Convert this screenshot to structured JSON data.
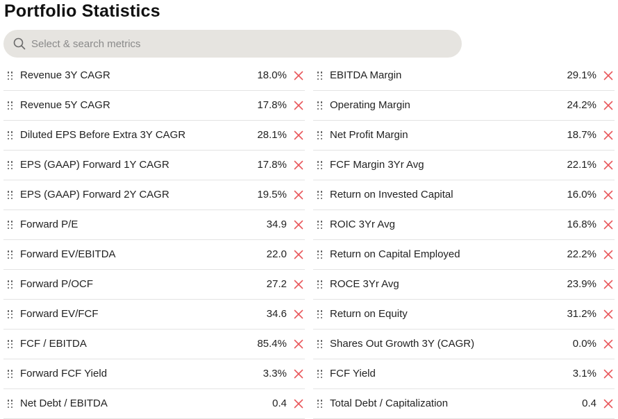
{
  "page": {
    "title": "Portfolio Statistics"
  },
  "search": {
    "placeholder": "Select & search metrics",
    "value": ""
  },
  "icons": {
    "search": "search-icon",
    "drag": "drag-handle-icon",
    "remove": "close-icon"
  },
  "colors": {
    "remove_icon": "#e8585c",
    "search_bg": "#e6e4e0"
  },
  "metrics": {
    "left": [
      {
        "label": "Revenue 3Y CAGR",
        "value": "18.0%"
      },
      {
        "label": "Revenue 5Y CAGR",
        "value": "17.8%"
      },
      {
        "label": "Diluted EPS Before Extra 3Y CAGR",
        "value": "28.1%"
      },
      {
        "label": "EPS (GAAP) Forward 1Y CAGR",
        "value": "17.8%"
      },
      {
        "label": "EPS (GAAP) Forward 2Y CAGR",
        "value": "19.5%"
      },
      {
        "label": "Forward P/E",
        "value": "34.9"
      },
      {
        "label": "Forward EV/EBITDA",
        "value": "22.0"
      },
      {
        "label": "Forward P/OCF",
        "value": "27.2"
      },
      {
        "label": "Forward EV/FCF",
        "value": "34.6"
      },
      {
        "label": "FCF / EBITDA",
        "value": "85.4%"
      },
      {
        "label": "Forward FCF Yield",
        "value": "3.3%"
      },
      {
        "label": "Net Debt / EBITDA",
        "value": "0.4"
      }
    ],
    "right": [
      {
        "label": "EBITDA Margin",
        "value": "29.1%"
      },
      {
        "label": "Operating Margin",
        "value": "24.2%"
      },
      {
        "label": "Net Profit Margin",
        "value": "18.7%"
      },
      {
        "label": "FCF Margin 3Yr Avg",
        "value": "22.1%"
      },
      {
        "label": "Return on Invested Capital",
        "value": "16.0%"
      },
      {
        "label": "ROIC 3Yr Avg",
        "value": "16.8%"
      },
      {
        "label": "Return on Capital Employed",
        "value": "22.2%"
      },
      {
        "label": "ROCE 3Yr Avg",
        "value": "23.9%"
      },
      {
        "label": "Return on Equity",
        "value": "31.2%"
      },
      {
        "label": "Shares Out Growth 3Y (CAGR)",
        "value": "0.0%"
      },
      {
        "label": "FCF Yield",
        "value": "3.1%"
      },
      {
        "label": "Total Debt / Capitalization",
        "value": "0.4"
      }
    ]
  }
}
